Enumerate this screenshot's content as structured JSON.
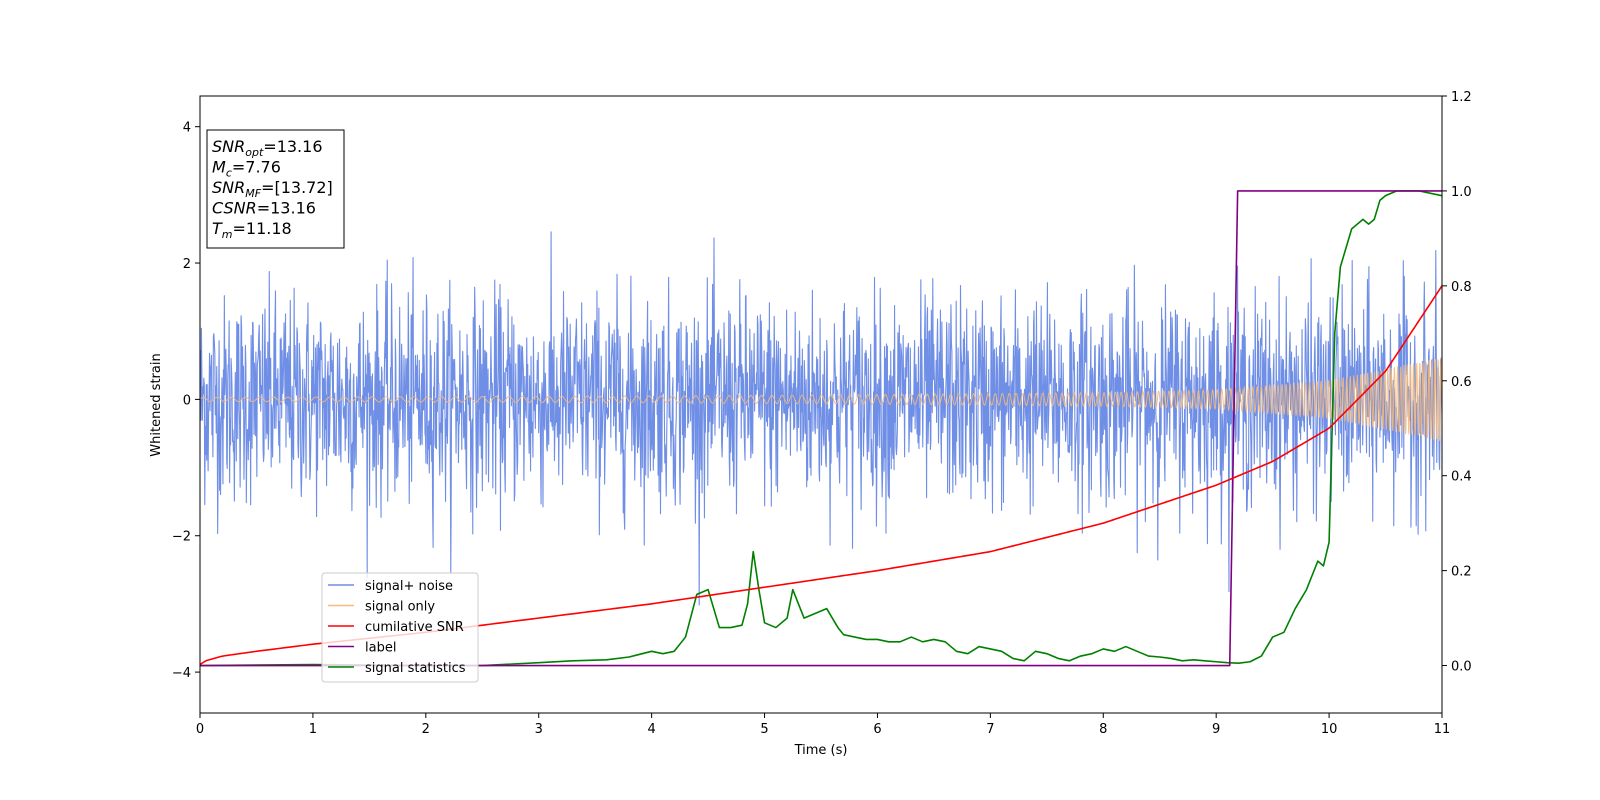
{
  "chart_data": {
    "type": "line",
    "xlabel": "Time (s)",
    "ylabel": "Whitened strain",
    "xlim": [
      0,
      11
    ],
    "ylim_left": [
      -4.6,
      4.45
    ],
    "ylim_right": [
      -0.1,
      1.2
    ],
    "x_ticks": [
      "0",
      "1",
      "2",
      "3",
      "4",
      "5",
      "6",
      "7",
      "8",
      "9",
      "10",
      "11"
    ],
    "y_ticks_left": [
      "−4",
      "−2",
      "0",
      "2",
      "4"
    ],
    "y_ticks_right": [
      "0.0",
      "0.2",
      "0.4",
      "0.6",
      "0.8",
      "1.0",
      "1.2"
    ],
    "grid": false,
    "legend_placement": "lower-left",
    "annotation": [
      {
        "var": "SNR",
        "sub": "opt",
        "value": "=13.16"
      },
      {
        "var": "M",
        "sub": "c",
        "value": "=7.76"
      },
      {
        "var": "SNR",
        "sub": "MF",
        "value": "=[13.72]"
      },
      {
        "var": "CSNR",
        "sub": "",
        "value": "=13.16"
      },
      {
        "var": "T",
        "sub": "m",
        "value": "=11.18"
      }
    ],
    "series": [
      {
        "name": "signal+ noise",
        "color": "#6f8ee6",
        "axis": "left",
        "description_values": {
          "noise_std": 0.75,
          "peak_abs": 4.0
        }
      },
      {
        "name": "signal only",
        "color": "#f5b97a",
        "axis": "left",
        "envelope": {
          "x": [
            0,
            2,
            4,
            6,
            8,
            9,
            10,
            11
          ],
          "amplitude": [
            0.03,
            0.04,
            0.05,
            0.07,
            0.1,
            0.14,
            0.28,
            0.62
          ]
        }
      },
      {
        "name": "cumilative SNR",
        "color": "#ff0000",
        "axis": "right",
        "x": [
          0,
          0.05,
          0.2,
          0.5,
          1,
          2,
          3,
          4,
          5,
          6,
          7,
          8,
          8.5,
          9,
          9.5,
          10,
          10.5,
          11
        ],
        "y": [
          0.002,
          0.01,
          0.02,
          0.03,
          0.045,
          0.07,
          0.1,
          0.13,
          0.165,
          0.2,
          0.24,
          0.3,
          0.34,
          0.38,
          0.43,
          0.5,
          0.62,
          0.8
        ]
      },
      {
        "name": "label",
        "color": "#800080",
        "axis": "right",
        "x": [
          0,
          9.12,
          9.19,
          11
        ],
        "y": [
          0,
          0,
          1,
          1
        ]
      },
      {
        "name": "signal statistics",
        "color": "#008000",
        "axis": "right",
        "x": [
          0,
          1,
          2,
          2.5,
          3,
          3.3,
          3.6,
          3.8,
          4.0,
          4.1,
          4.2,
          4.3,
          4.4,
          4.5,
          4.6,
          4.7,
          4.8,
          4.85,
          4.9,
          4.95,
          5.0,
          5.1,
          5.2,
          5.25,
          5.35,
          5.45,
          5.55,
          5.65,
          5.7,
          5.8,
          5.9,
          6.0,
          6.1,
          6.2,
          6.3,
          6.4,
          6.5,
          6.6,
          6.7,
          6.8,
          6.9,
          7.0,
          7.1,
          7.2,
          7.3,
          7.4,
          7.5,
          7.6,
          7.7,
          7.8,
          7.9,
          8.0,
          8.1,
          8.2,
          8.3,
          8.4,
          8.5,
          8.6,
          8.7,
          8.8,
          8.9,
          9.0,
          9.1,
          9.2,
          9.3,
          9.4,
          9.5,
          9.6,
          9.7,
          9.8,
          9.9,
          9.95,
          10.0,
          10.05,
          10.1,
          10.2,
          10.3,
          10.35,
          10.4,
          10.45,
          10.5,
          10.6,
          10.7,
          10.8,
          11.0
        ],
        "y": [
          0.0,
          0.002,
          0.0,
          0.0,
          0.006,
          0.01,
          0.012,
          0.018,
          0.03,
          0.025,
          0.03,
          0.06,
          0.15,
          0.16,
          0.08,
          0.08,
          0.085,
          0.13,
          0.24,
          0.16,
          0.09,
          0.08,
          0.1,
          0.16,
          0.1,
          0.11,
          0.12,
          0.08,
          0.065,
          0.06,
          0.055,
          0.055,
          0.05,
          0.05,
          0.06,
          0.05,
          0.055,
          0.05,
          0.03,
          0.025,
          0.04,
          0.035,
          0.03,
          0.015,
          0.01,
          0.03,
          0.025,
          0.015,
          0.01,
          0.02,
          0.025,
          0.035,
          0.03,
          0.04,
          0.03,
          0.02,
          0.018,
          0.015,
          0.01,
          0.012,
          0.01,
          0.008,
          0.006,
          0.005,
          0.008,
          0.02,
          0.06,
          0.07,
          0.12,
          0.16,
          0.22,
          0.21,
          0.26,
          0.7,
          0.84,
          0.92,
          0.94,
          0.93,
          0.94,
          0.98,
          0.99,
          1.0,
          1.0,
          1.0,
          0.99
        ]
      }
    ]
  }
}
